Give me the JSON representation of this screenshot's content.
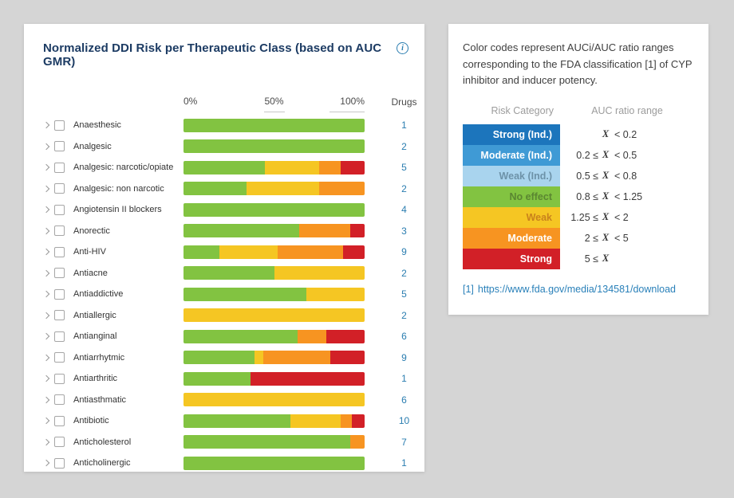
{
  "colors": {
    "green": "#82c341",
    "yellow": "#f5c623",
    "orange": "#f79421",
    "red": "#d22027",
    "blue_dark": "#1c75bc",
    "blue_mid": "#3f9ad5",
    "blue_light": "#a9d4ee",
    "count_text": "#2a7db0",
    "link": "#2980b9"
  },
  "left_panel": {
    "title": "Normalized DDI Risk per Therapeutic Class (based on AUC GMR)",
    "info_icon": "i",
    "axis": {
      "tick_0": "0%",
      "tick_50": "50%",
      "tick_100": "100%",
      "drugs_header": "Drugs"
    }
  },
  "chart_data": {
    "type": "bar",
    "variant": "horizontal-stacked-normalized",
    "title": "Normalized DDI Risk per Therapeutic Class (based on AUC GMR)",
    "x_axis": {
      "ticks": [
        "0%",
        "50%",
        "100%"
      ],
      "range": [
        0,
        100
      ],
      "unit": "percent"
    },
    "value_column": "Drugs",
    "segment_keys": [
      "no_effect",
      "weak",
      "moderate",
      "strong"
    ],
    "segment_colors": {
      "no_effect": "#82c341",
      "weak": "#f5c623",
      "moderate": "#f79421",
      "strong": "#d22027"
    },
    "rows": [
      {
        "label": "Anaesthesic",
        "drugs": 1,
        "segments": {
          "no_effect": 100
        }
      },
      {
        "label": "Analgesic",
        "drugs": 2,
        "segments": {
          "no_effect": 100
        }
      },
      {
        "label": "Analgesic: narcotic/opiate",
        "drugs": 5,
        "segments": {
          "no_effect": 45,
          "weak": 30,
          "moderate": 12,
          "strong": 13
        }
      },
      {
        "label": "Analgesic: non narcotic",
        "drugs": 2,
        "segments": {
          "no_effect": 35,
          "weak": 40,
          "moderate": 25
        }
      },
      {
        "label": "Angiotensin II blockers",
        "drugs": 4,
        "segments": {
          "no_effect": 100
        }
      },
      {
        "label": "Anorectic",
        "drugs": 3,
        "segments": {
          "no_effect": 64,
          "moderate": 28,
          "strong": 8
        }
      },
      {
        "label": "Anti-HIV",
        "drugs": 9,
        "segments": {
          "no_effect": 20,
          "weak": 32,
          "moderate": 36,
          "strong": 12
        }
      },
      {
        "label": "Antiacne",
        "drugs": 2,
        "segments": {
          "no_effect": 50,
          "weak": 50
        }
      },
      {
        "label": "Antiaddictive",
        "drugs": 5,
        "segments": {
          "no_effect": 68,
          "weak": 32
        }
      },
      {
        "label": "Antiallergic",
        "drugs": 2,
        "segments": {
          "weak": 100
        }
      },
      {
        "label": "Antianginal",
        "drugs": 6,
        "segments": {
          "no_effect": 63,
          "moderate": 16,
          "strong": 21
        }
      },
      {
        "label": "Antiarrhytmic",
        "drugs": 9,
        "segments": {
          "no_effect": 39,
          "weak": 5,
          "moderate": 37,
          "strong": 19
        }
      },
      {
        "label": "Antiarthritic",
        "drugs": 1,
        "segments": {
          "no_effect": 37,
          "strong": 63
        }
      },
      {
        "label": "Antiasthmatic",
        "drugs": 6,
        "segments": {
          "weak": 100
        }
      },
      {
        "label": "Antibiotic",
        "drugs": 10,
        "segments": {
          "no_effect": 59,
          "weak": 28,
          "moderate": 6,
          "strong": 7
        }
      },
      {
        "label": "Anticholesterol",
        "drugs": 7,
        "segments": {
          "no_effect": 92,
          "moderate": 8
        }
      },
      {
        "label": "Anticholinergic",
        "drugs": 1,
        "segments": {
          "no_effect": 100
        }
      }
    ]
  },
  "legend_panel": {
    "description": "Color codes represent AUCi/AUC ratio ranges corresponding to the FDA classification [1] of CYP inhibitor and inducer potency.",
    "table": {
      "col1_header": "Risk Category",
      "col2_header": "AUC ratio range",
      "rows": [
        {
          "category": "Strong (Ind.)",
          "bg": "#1c75bc",
          "fg": "#ffffff",
          "prefix": "",
          "x": "X",
          "suffix": "<  0.2"
        },
        {
          "category": "Moderate (Ind.)",
          "bg": "#3f9ad5",
          "fg": "#ffffff",
          "prefix": "0.2 ≤",
          "x": "X",
          "suffix": "<  0.5"
        },
        {
          "category": "Weak (Ind.)",
          "bg": "#a9d4ee",
          "fg": "#6d92a8",
          "prefix": "0.5 ≤",
          "x": "X",
          "suffix": "<  0.8"
        },
        {
          "category": "No effect",
          "bg": "#82c341",
          "fg": "#5a8631",
          "prefix": "0.8 ≤",
          "x": "X",
          "suffix": "<  1.25"
        },
        {
          "category": "Weak",
          "bg": "#f5c623",
          "fg": "#c9821c",
          "prefix": "1.25 ≤",
          "x": "X",
          "suffix": "<  2"
        },
        {
          "category": "Moderate",
          "bg": "#f79421",
          "fg": "#ffffff",
          "prefix": "2 ≤",
          "x": "X",
          "suffix": "<  5"
        },
        {
          "category": "Strong",
          "bg": "#d22027",
          "fg": "#ffffff",
          "prefix": "5 ≤",
          "x": "X",
          "suffix": ""
        }
      ]
    },
    "footnote": {
      "ref": "[1]",
      "url": "https://www.fda.gov/media/134581/download"
    }
  }
}
